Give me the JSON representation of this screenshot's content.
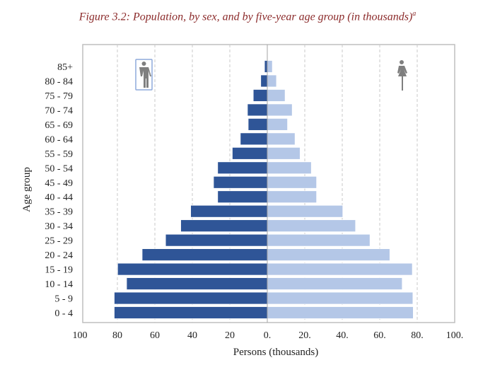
{
  "chart_data": {
    "type": "bar",
    "orientation": "horizontal-pyramid",
    "title": "Figure 3.2: Population, by sex, and by five-year age group (in thousands)",
    "title_superscript": "a",
    "xlabel": "Persons (thousands)",
    "ylabel": "Age group",
    "xlim": [
      -100,
      100
    ],
    "x_tick_labels": [
      "100",
      "80",
      "60",
      "40",
      "20",
      "0.",
      "20.",
      "40.",
      "60.",
      "80.",
      "100."
    ],
    "grid": "vertical dashed",
    "categories": [
      "85+",
      "80 - 84",
      "75 - 79",
      "70 - 74",
      "65 - 69",
      "60 - 64",
      "55 - 59",
      "50 - 54",
      "45 - 49",
      "40 - 44",
      "35 - 39",
      "30 - 34",
      "25 - 29",
      "20 - 24",
      "15 - 19",
      "10 - 14",
      "5 - 9",
      "0 - 4"
    ],
    "series": [
      {
        "side": "left",
        "icon": "male-icon",
        "color": "#2f5597",
        "values": [
          1.5,
          3.5,
          7.5,
          10.6,
          10.2,
          14.4,
          18.7,
          26.5,
          28.7,
          26.5,
          40.9,
          46.2,
          54.3,
          66.8,
          79.9,
          75.1,
          81.7,
          81.7
        ]
      },
      {
        "side": "right",
        "icon": "female-icon",
        "color": "#b4c7e7",
        "values": [
          2.7,
          4.9,
          9.5,
          13.3,
          10.8,
          14.8,
          17.5,
          23.5,
          26.3,
          26.3,
          40.3,
          47.1,
          54.8,
          65.4,
          77.4,
          72.0,
          77.7,
          77.9
        ]
      }
    ]
  }
}
